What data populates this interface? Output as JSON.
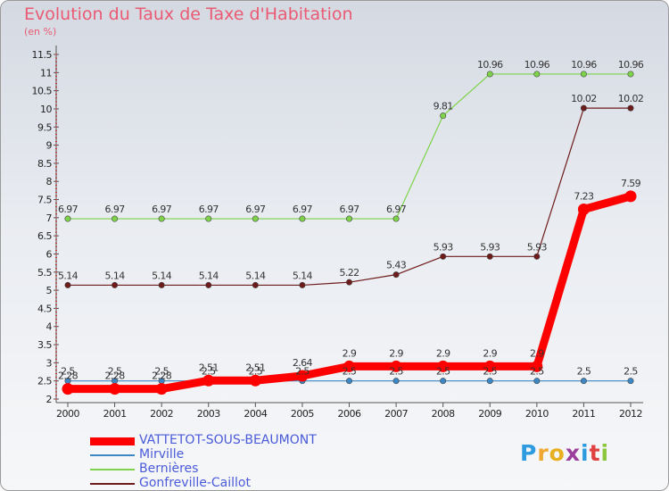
{
  "title": "Evolution du Taux de Taxe d'Habitation",
  "subtitle": "(en %)",
  "logo": {
    "text": "Proxiti",
    "letter_colors": [
      "#2e9be0",
      "#f0a830",
      "#e8b020",
      "#9c3e9c",
      "#2e9be0",
      "#e04040",
      "#8cc63f"
    ]
  },
  "chart_data": {
    "type": "line",
    "x": [
      "2000",
      "2001",
      "2002",
      "2003",
      "2004",
      "2005",
      "2006",
      "2007",
      "2008",
      "2009",
      "2010",
      "2011",
      "2012"
    ],
    "ylim": [
      2,
      11.5
    ],
    "yticks": [
      "2",
      "2.5",
      "3",
      "3.5",
      "4",
      "4.5",
      "5",
      "5.5",
      "6",
      "6.5",
      "7",
      "7.5",
      "8",
      "8.5",
      "9",
      "9.5",
      "10",
      "10.5",
      "11",
      "11.5"
    ],
    "grid": false,
    "legend_position": "bottom-left",
    "series": [
      {
        "name": "VATTETOT-SOUS-BEAUMONT",
        "color": "#ff0000",
        "values": [
          2.28,
          2.28,
          2.28,
          2.51,
          2.51,
          2.64,
          2.9,
          2.9,
          2.9,
          2.9,
          2.9,
          7.23,
          7.59
        ],
        "labels": [
          "2.28",
          "2.28",
          "2.28",
          "2.51",
          "2.51",
          "2.64",
          "2.9",
          "2.9",
          "2.9",
          "2.9",
          "2.9",
          "7.23",
          "7.59"
        ]
      },
      {
        "name": "Mirville",
        "color": "#3d87c4",
        "values": [
          2.5,
          2.5,
          2.5,
          2.5,
          2.5,
          2.5,
          2.5,
          2.5,
          2.5,
          2.5,
          2.5,
          2.5,
          2.5
        ],
        "labels": [
          "2.5",
          "2.5",
          "2.5",
          "2.5",
          "2.5",
          "2.5",
          "2.5",
          "2.5",
          "2.5",
          "2.5",
          "2.5",
          "2.5",
          "2.5"
        ]
      },
      {
        "name": "Bernières",
        "color": "#7ed34a",
        "values": [
          6.97,
          6.97,
          6.97,
          6.97,
          6.97,
          6.97,
          6.97,
          6.97,
          9.81,
          10.96,
          10.96,
          10.96,
          10.96
        ],
        "labels": [
          "6.97",
          "6.97",
          "6.97",
          "6.97",
          "6.97",
          "6.97",
          "6.97",
          "6.97",
          "9.81",
          "10.96",
          "10.96",
          "10.96",
          "10.96"
        ]
      },
      {
        "name": "Gonfreville-Caillot",
        "color": "#6e1b1b",
        "values": [
          5.14,
          5.14,
          5.14,
          5.14,
          5.14,
          5.14,
          5.22,
          5.43,
          5.93,
          5.93,
          5.93,
          10.02,
          10.02
        ],
        "labels": [
          "5.14",
          "5.14",
          "5.14",
          "5.14",
          "5.14",
          "5.14",
          "5.22",
          "5.43",
          "5.93",
          "5.93",
          "5.93",
          "10.02",
          "10.02"
        ]
      }
    ]
  }
}
